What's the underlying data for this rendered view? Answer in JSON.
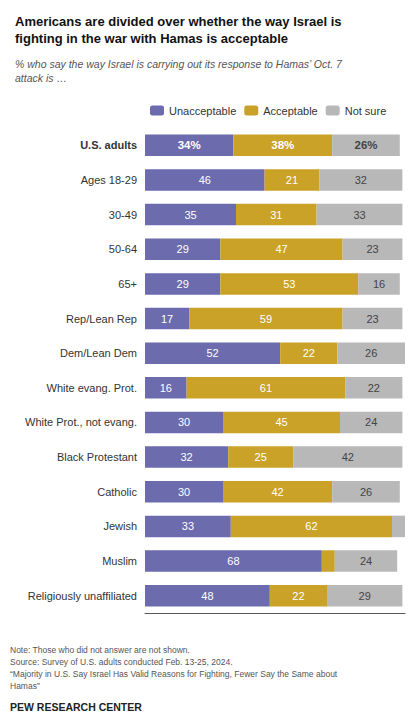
{
  "chart_data": {
    "type": "bar",
    "orientation": "horizontal",
    "stacked": true,
    "title": "Americans are divided over whether the way Israel is\nfighting in the war with Hamas is acceptable",
    "subtitle": "% who say the way Israel is carrying out its response to Hamas’ Oct. 7\nattack is …",
    "categories": [
      "U.S. adults",
      "Ages 18-29",
      "30-49",
      "50-64",
      "65+",
      "Rep/Lean Rep",
      "Dem/Lean Dem",
      "White evang. Prot.",
      "White Prot., not evang.",
      "Black Protestant",
      "Catholic",
      "Jewish",
      "Muslim",
      "Religiously unaffiliated"
    ],
    "series": [
      {
        "name": "Unacceptable",
        "color": "#6b6bad",
        "values": [
          34,
          46,
          35,
          29,
          29,
          17,
          52,
          16,
          30,
          32,
          30,
          33,
          68,
          48
        ],
        "value_labels": [
          "34%",
          "46",
          "35",
          "29",
          "29",
          "17",
          "52",
          "16",
          "30",
          "32",
          "30",
          "33",
          "68",
          "48"
        ]
      },
      {
        "name": "Acceptable",
        "color": "#c9a227",
        "values": [
          38,
          21,
          31,
          47,
          53,
          59,
          22,
          61,
          45,
          25,
          42,
          62,
          5,
          22
        ],
        "value_labels": [
          "38%",
          "21",
          "31",
          "47",
          "53",
          "59",
          "22",
          "61",
          "45",
          "25",
          "42",
          "62",
          null,
          "22"
        ]
      },
      {
        "name": "Not sure",
        "color": "#b8b8b8",
        "values": [
          26,
          32,
          33,
          23,
          16,
          23,
          26,
          22,
          24,
          42,
          26,
          5,
          24,
          29
        ],
        "value_labels": [
          "26%",
          "32",
          "33",
          "23",
          "16",
          "23",
          "26",
          "22",
          "24",
          "42",
          "26",
          null,
          "24",
          "29"
        ]
      }
    ],
    "xlim": [
      0,
      100
    ],
    "data_labels": true,
    "tick_labels": "y",
    "grid": false,
    "legend": "top",
    "annotations": [
      "Note: Those who did not answer are not shown.",
      "Source: Survey of U.S. adults conducted Feb. 13-25, 2024.",
      "“Majority in U.S. Say Israel Has Valid Reasons for Fighting, Fewer Say the Same about",
      "Hamas”",
      "PEW RESEARCH CENTER"
    ]
  }
}
